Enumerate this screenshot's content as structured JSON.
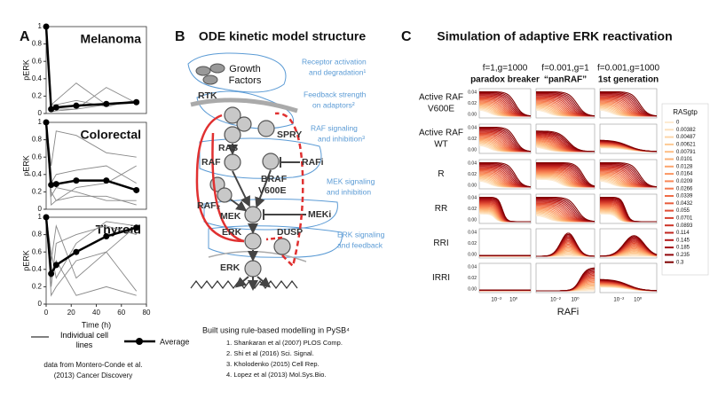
{
  "chart_data": [
    {
      "type": "line",
      "title": "Melanoma",
      "y_label": "pERK",
      "x": [
        0,
        4,
        8,
        24,
        48,
        72
      ],
      "xlim": [
        0,
        80
      ],
      "ylim": [
        0,
        1
      ],
      "yticks": [
        0,
        0.2,
        0.4,
        0.6,
        0.8,
        1
      ],
      "series": [
        {
          "color": "#888888",
          "values": [
            1,
            0.1,
            0.15,
            0.35,
            0.1,
            0.15
          ]
        },
        {
          "color": "#888888",
          "values": [
            1,
            0.05,
            0.05,
            0.05,
            0.3,
            0.12
          ]
        },
        {
          "color": "#888888",
          "values": [
            1,
            0.1,
            0.1,
            0.15,
            0.08,
            0.15
          ]
        },
        {
          "color": "#888888",
          "values": [
            1,
            0.02,
            0.03,
            0.05,
            0.1,
            0.12
          ]
        },
        {
          "name": "Average",
          "color": "#000000",
          "values": [
            1,
            0.05,
            0.07,
            0.09,
            0.11,
            0.13
          ]
        }
      ]
    },
    {
      "type": "line",
      "title": "Colorectal",
      "y_label": "pERK",
      "x": [
        0,
        4,
        8,
        24,
        48,
        72
      ],
      "xlim": [
        0,
        80
      ],
      "ylim": [
        0,
        1
      ],
      "yticks": [
        0,
        0.2,
        0.4,
        0.6,
        0.8,
        1
      ],
      "series": [
        {
          "color": "#888888",
          "values": [
            1,
            0.5,
            0.9,
            0.85,
            0.65,
            0.6
          ]
        },
        {
          "color": "#888888",
          "values": [
            1,
            0.3,
            0.4,
            0.45,
            0.5,
            0.3
          ]
        },
        {
          "color": "#888888",
          "values": [
            1,
            0.15,
            0.25,
            0.2,
            0.1,
            0.1
          ]
        },
        {
          "color": "#888888",
          "values": [
            1,
            0.2,
            0.1,
            0.25,
            0.3,
            0.5
          ]
        },
        {
          "color": "#888888",
          "values": [
            1,
            0.05,
            0.1,
            0.15,
            0.15,
            0.05
          ]
        },
        {
          "name": "Average",
          "color": "#000000",
          "values": [
            1,
            0.28,
            0.29,
            0.33,
            0.33,
            0.22
          ]
        }
      ]
    },
    {
      "type": "line",
      "title": "Thyroid",
      "y_label": "pERK",
      "x_label": "Time (h)",
      "x": [
        0,
        4,
        8,
        24,
        48,
        72
      ],
      "xlim": [
        0,
        80
      ],
      "xticks": [
        0,
        20,
        40,
        60,
        80
      ],
      "ylim": [
        0,
        1
      ],
      "yticks": [
        0,
        0.2,
        0.4,
        0.6,
        0.8,
        1
      ],
      "series": [
        {
          "color": "#888888",
          "values": [
            1,
            0.2,
            0.7,
            0.8,
            0.9,
            0.8
          ]
        },
        {
          "color": "#888888",
          "values": [
            1,
            0.5,
            0.9,
            0.3,
            0.6,
            0.9
          ]
        },
        {
          "color": "#888888",
          "values": [
            1,
            0.6,
            0.3,
            0.7,
            0.95,
            0.9
          ]
        },
        {
          "color": "#888888",
          "values": [
            1,
            0.1,
            0.2,
            0.5,
            0.6,
            0.15
          ]
        },
        {
          "color": "#888888",
          "values": [
            1,
            0.3,
            0.5,
            0.1,
            0.2,
            0.1
          ]
        },
        {
          "name": "Average",
          "color": "#000000",
          "values": [
            1,
            0.35,
            0.45,
            0.6,
            0.78,
            0.88
          ]
        }
      ]
    }
  ],
  "panel_a": {
    "letter": "A",
    "legend": [
      "Individual cell lines",
      "Average"
    ],
    "source": [
      "data from Montero-Conde et al.",
      "(2013) Cancer Discovery"
    ]
  },
  "panel_b": {
    "letter": "B",
    "title": "ODE kinetic model structure",
    "nodes": [
      "Growth",
      "Factors",
      "RTK",
      "RAS",
      "SPRY",
      "RAF",
      "RAFi",
      "BRAF",
      "V600E",
      "RAF₂",
      "MEK",
      "MEKi",
      "ERK",
      "DUSP",
      "ERK"
    ],
    "annotations": [
      [
        "Receptor activation",
        "and degradation¹"
      ],
      [
        "Feedback strength",
        "on adaptors²"
      ],
      [
        "RAF signaling",
        "and inhibition³"
      ],
      [
        "MEK signaling",
        "and inhibition"
      ],
      [
        "ERK signaling",
        "and feedback"
      ]
    ],
    "footer": "Built using rule-based modelling in PySB⁴",
    "references": [
      "1. Shankaran et al (2007) PLOS Comp.",
      "2. Shi et al (2016) Sci. Signal.",
      "3. Kholodenko (2015) Cell Rep.",
      "4. Lopez et al (2013) Mol.Sys.Bio."
    ]
  },
  "panel_c": {
    "letter": "C",
    "title": "Simulation of adaptive ERK reactivation",
    "columns": [
      {
        "params": "f=1,g=1000",
        "name": "paradox breaker"
      },
      {
        "params": "f=0.001,g=1",
        "name": "“panRAF”"
      },
      {
        "params": "f=0.001,g=1000",
        "name": "1st generation"
      }
    ],
    "rows": [
      [
        "Active RAF",
        "V600E"
      ],
      [
        "Active RAF",
        "WT"
      ],
      [
        "R"
      ],
      [
        "RR"
      ],
      [
        "RRI"
      ],
      [
        "IRRI"
      ]
    ],
    "ytick_labels": [
      "0.04",
      "0.02",
      "0.00"
    ],
    "xtick_labels": [
      "10⁻²",
      "10⁰"
    ],
    "x_label": "RAFi",
    "legend_title": "RASgtp",
    "legend_values": [
      0,
      0.00382,
      0.00487,
      0.00621,
      0.00791,
      0.0101,
      0.0128,
      0.0164,
      0.0209,
      0.0266,
      0.0339,
      0.0432,
      0.055,
      0.0701,
      0.0893,
      0.114,
      0.145,
      0.185,
      0.235,
      0.3
    ],
    "legend_colors": [
      "#fdebd2",
      "#fde0bc",
      "#fdd5a8",
      "#fdca94",
      "#fdbe84",
      "#fcb277",
      "#fca46c",
      "#fb9661",
      "#f88858",
      "#f47a4f",
      "#ef6c46",
      "#e85d3d",
      "#e04e35",
      "#d6402d",
      "#cc3226",
      "#c0251f",
      "#b21819",
      "#a30e13",
      "#910509",
      "#7f0000"
    ]
  }
}
